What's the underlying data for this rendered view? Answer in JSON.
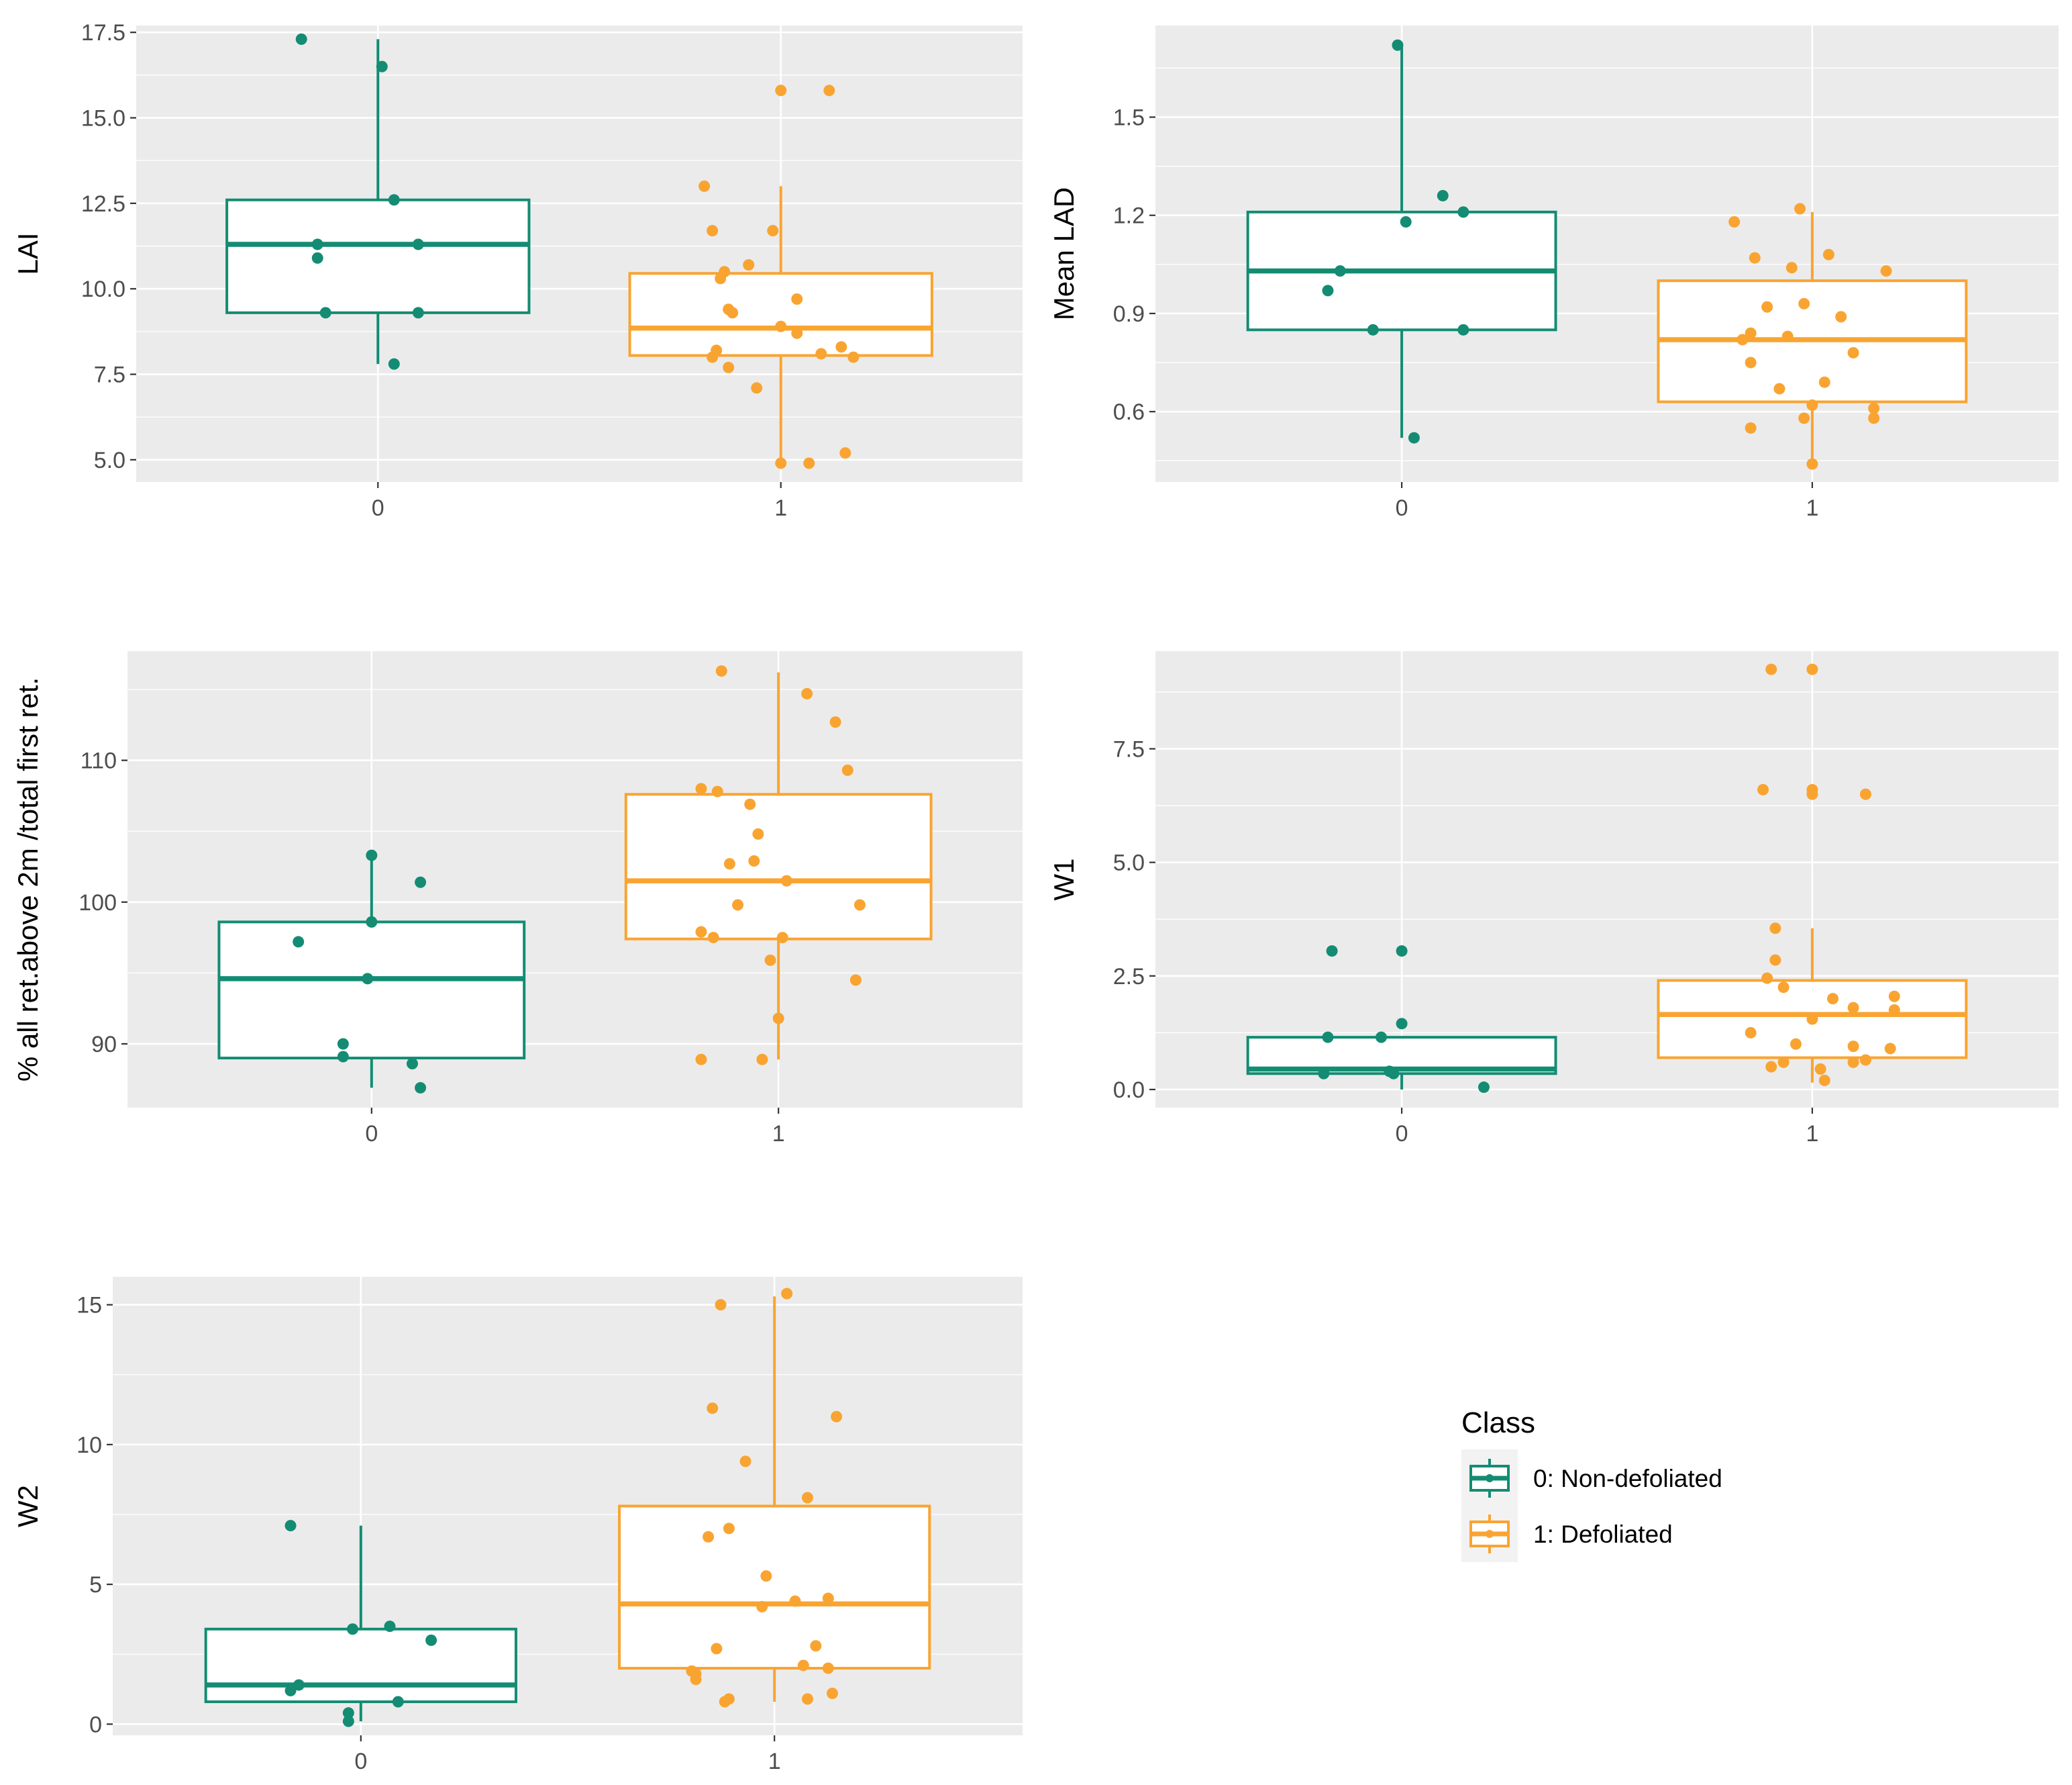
{
  "colors": {
    "class0": "#138C73",
    "class1": "#F9A431"
  },
  "legend": {
    "title": "Class",
    "items": [
      {
        "label": "0: Non-defoliated",
        "color": "#138C73"
      },
      {
        "label": "1: Defoliated",
        "color": "#F9A431"
      }
    ]
  },
  "chart_data": [
    {
      "type": "box",
      "ylabel": "LAI",
      "categories": [
        "0",
        "1"
      ],
      "ylim": [
        4.35,
        17.7
      ],
      "yticks": [
        5.0,
        7.5,
        10.0,
        12.5,
        15.0,
        17.5
      ],
      "ytick_labels": [
        "5.0",
        "7.5",
        "10.0",
        "12.5",
        "15.0",
        "17.5"
      ],
      "boxes": [
        {
          "category": "0",
          "q1": 9.3,
          "median": 11.3,
          "q3": 12.6,
          "whisker_low": 7.8,
          "whisker_high": 17.3,
          "points": [
            [
              -0.19,
              17.3
            ],
            [
              0.01,
              16.5
            ],
            [
              0.04,
              12.6
            ],
            [
              -0.15,
              11.3
            ],
            [
              0.1,
              11.3
            ],
            [
              -0.15,
              10.9
            ],
            [
              -0.13,
              9.3
            ],
            [
              0.1,
              9.3
            ],
            [
              0.04,
              7.8
            ]
          ]
        },
        {
          "category": "1",
          "q1": 8.05,
          "median": 8.85,
          "q3": 10.45,
          "whisker_low": 4.9,
          "whisker_high": 13.0,
          "points": [
            [
              0.0,
              15.8
            ],
            [
              0.12,
              15.8
            ],
            [
              -0.19,
              13.0
            ],
            [
              -0.17,
              11.7
            ],
            [
              -0.02,
              11.7
            ],
            [
              -0.14,
              10.5
            ],
            [
              -0.08,
              10.7
            ],
            [
              -0.15,
              10.3
            ],
            [
              -0.13,
              9.4
            ],
            [
              -0.12,
              9.3
            ],
            [
              0.04,
              9.7
            ],
            [
              0.0,
              8.9
            ],
            [
              0.04,
              8.7
            ],
            [
              -0.16,
              8.2
            ],
            [
              -0.17,
              8.0
            ],
            [
              0.1,
              8.1
            ],
            [
              0.15,
              8.3
            ],
            [
              0.18,
              8.0
            ],
            [
              -0.13,
              7.7
            ],
            [
              -0.06,
              7.1
            ],
            [
              0.0,
              4.9
            ],
            [
              0.07,
              4.9
            ],
            [
              0.16,
              5.2
            ]
          ]
        }
      ]
    },
    {
      "type": "box",
      "ylabel": "Mean LAD",
      "categories": [
        "0",
        "1"
      ],
      "ylim": [
        0.385,
        1.78
      ],
      "yticks": [
        0.6,
        0.9,
        1.2,
        1.5
      ],
      "ytick_labels": [
        "0.6",
        "0.9",
        "1.2",
        "1.5"
      ],
      "boxes": [
        {
          "category": "0",
          "q1": 0.85,
          "median": 1.03,
          "q3": 1.21,
          "whisker_low": 0.52,
          "whisker_high": 1.72,
          "points": [
            [
              -0.01,
              1.72
            ],
            [
              0.1,
              1.26
            ],
            [
              0.15,
              1.21
            ],
            [
              0.01,
              1.18
            ],
            [
              -0.15,
              1.03
            ],
            [
              -0.18,
              0.97
            ],
            [
              -0.07,
              0.85
            ],
            [
              0.15,
              0.85
            ],
            [
              0.03,
              0.52
            ]
          ]
        },
        {
          "category": "1",
          "q1": 0.63,
          "median": 0.82,
          "q3": 1.0,
          "whisker_low": 0.44,
          "whisker_high": 1.21,
          "points": [
            [
              -0.03,
              1.22
            ],
            [
              -0.19,
              1.18
            ],
            [
              -0.14,
              1.07
            ],
            [
              0.04,
              1.08
            ],
            [
              -0.05,
              1.04
            ],
            [
              0.18,
              1.03
            ],
            [
              -0.11,
              0.92
            ],
            [
              -0.02,
              0.93
            ],
            [
              0.07,
              0.89
            ],
            [
              -0.15,
              0.84
            ],
            [
              -0.06,
              0.83
            ],
            [
              -0.17,
              0.82
            ],
            [
              0.1,
              0.78
            ],
            [
              -0.15,
              0.75
            ],
            [
              0.03,
              0.69
            ],
            [
              -0.08,
              0.67
            ],
            [
              0.15,
              0.61
            ],
            [
              -0.02,
              0.58
            ],
            [
              0.15,
              0.58
            ],
            [
              0.0,
              0.62
            ],
            [
              -0.15,
              0.55
            ],
            [
              0.0,
              0.44
            ]
          ]
        }
      ]
    },
    {
      "type": "box",
      "ylabel": "% all ret.above 2m /total first ret.",
      "categories": [
        "0",
        "1"
      ],
      "ylim": [
        85.5,
        117.7
      ],
      "yticks": [
        90,
        100,
        110
      ],
      "ytick_labels": [
        "90",
        "100",
        "110"
      ],
      "boxes": [
        {
          "category": "0",
          "q1": 89.0,
          "median": 94.6,
          "q3": 98.6,
          "whisker_low": 86.9,
          "whisker_high": 103.3,
          "points": [
            [
              0.0,
              103.3
            ],
            [
              0.12,
              101.4
            ],
            [
              0.0,
              98.6
            ],
            [
              -0.18,
              97.2
            ],
            [
              -0.01,
              94.6
            ],
            [
              -0.07,
              90.0
            ],
            [
              -0.07,
              89.1
            ],
            [
              0.1,
              88.6
            ],
            [
              0.12,
              86.9
            ]
          ]
        },
        {
          "category": "1",
          "q1": 97.4,
          "median": 101.5,
          "q3": 107.6,
          "whisker_low": 88.9,
          "whisker_high": 116.2,
          "points": [
            [
              -0.14,
              116.3
            ],
            [
              0.07,
              114.7
            ],
            [
              0.14,
              112.7
            ],
            [
              0.17,
              109.3
            ],
            [
              -0.19,
              108.0
            ],
            [
              -0.15,
              107.8
            ],
            [
              -0.07,
              106.9
            ],
            [
              -0.05,
              104.8
            ],
            [
              -0.12,
              102.7
            ],
            [
              -0.06,
              102.9
            ],
            [
              0.02,
              101.5
            ],
            [
              -0.1,
              99.8
            ],
            [
              0.2,
              99.8
            ],
            [
              -0.19,
              97.9
            ],
            [
              -0.16,
              97.5
            ],
            [
              0.01,
              97.5
            ],
            [
              -0.02,
              95.9
            ],
            [
              0.19,
              94.5
            ],
            [
              0.0,
              91.8
            ],
            [
              -0.19,
              88.9
            ],
            [
              -0.04,
              88.9
            ]
          ]
        }
      ]
    },
    {
      "type": "box",
      "ylabel": "W1",
      "categories": [
        "0",
        "1"
      ],
      "ylim": [
        -0.4,
        9.65
      ],
      "yticks": [
        0.0,
        2.5,
        5.0,
        7.5
      ],
      "ytick_labels": [
        "0.0",
        "2.5",
        "5.0",
        "7.5"
      ],
      "boxes": [
        {
          "category": "0",
          "q1": 0.35,
          "median": 0.45,
          "q3": 1.15,
          "whisker_low": 0.0,
          "whisker_high": 1.15,
          "points": [
            [
              -0.17,
              3.05
            ],
            [
              0.0,
              3.05
            ],
            [
              0.0,
              1.45
            ],
            [
              -0.18,
              1.15
            ],
            [
              -0.05,
              1.15
            ],
            [
              -0.19,
              0.35
            ],
            [
              -0.03,
              0.4
            ],
            [
              -0.02,
              0.35
            ],
            [
              0.2,
              0.05
            ]
          ]
        },
        {
          "category": "1",
          "q1": 0.7,
          "median": 1.65,
          "q3": 2.4,
          "whisker_low": 0.15,
          "whisker_high": 3.55,
          "points": [
            [
              -0.1,
              9.25
            ],
            [
              0.0,
              9.25
            ],
            [
              -0.12,
              6.6
            ],
            [
              0.0,
              6.6
            ],
            [
              0.0,
              6.5
            ],
            [
              0.13,
              6.5
            ],
            [
              -0.09,
              3.55
            ],
            [
              -0.09,
              2.85
            ],
            [
              -0.11,
              2.45
            ],
            [
              -0.07,
              2.25
            ],
            [
              0.05,
              2.0
            ],
            [
              0.2,
              2.05
            ],
            [
              0.1,
              1.8
            ],
            [
              0.2,
              1.75
            ],
            [
              0.0,
              1.55
            ],
            [
              -0.15,
              1.25
            ],
            [
              -0.04,
              1.0
            ],
            [
              0.19,
              0.9
            ],
            [
              0.1,
              0.95
            ],
            [
              -0.1,
              0.5
            ],
            [
              -0.07,
              0.6
            ],
            [
              0.02,
              0.45
            ],
            [
              0.1,
              0.6
            ],
            [
              0.13,
              0.65
            ],
            [
              0.03,
              0.2
            ]
          ]
        }
      ]
    },
    {
      "type": "box",
      "ylabel": "W2",
      "categories": [
        "0",
        "1"
      ],
      "ylim": [
        -0.4,
        16.0
      ],
      "yticks": [
        0,
        5,
        10,
        15
      ],
      "ytick_labels": [
        "0",
        "5",
        "10",
        "15"
      ],
      "boxes": [
        {
          "category": "0",
          "q1": 0.8,
          "median": 1.4,
          "q3": 3.4,
          "whisker_low": 0.1,
          "whisker_high": 7.1,
          "points": [
            [
              -0.17,
              7.1
            ],
            [
              0.07,
              3.5
            ],
            [
              -0.02,
              3.4
            ],
            [
              0.17,
              3.0
            ],
            [
              -0.15,
              1.4
            ],
            [
              -0.17,
              1.2
            ],
            [
              0.09,
              0.8
            ],
            [
              -0.03,
              0.4
            ],
            [
              -0.03,
              0.1
            ]
          ]
        },
        {
          "category": "1",
          "q1": 2.0,
          "median": 4.3,
          "q3": 7.8,
          "whisker_low": 0.8,
          "whisker_high": 15.3,
          "points": [
            [
              0.03,
              15.4
            ],
            [
              -0.13,
              15.0
            ],
            [
              -0.15,
              11.3
            ],
            [
              0.15,
              11.0
            ],
            [
              -0.07,
              9.4
            ],
            [
              0.08,
              8.1
            ],
            [
              -0.11,
              7.0
            ],
            [
              -0.16,
              6.7
            ],
            [
              -0.02,
              5.3
            ],
            [
              -0.03,
              4.2
            ],
            [
              0.05,
              4.4
            ],
            [
              0.13,
              4.5
            ],
            [
              -0.14,
              2.7
            ],
            [
              0.1,
              2.8
            ],
            [
              -0.2,
              1.9
            ],
            [
              -0.19,
              1.8
            ],
            [
              -0.19,
              1.6
            ],
            [
              0.07,
              2.1
            ],
            [
              0.13,
              2.0
            ],
            [
              0.14,
              1.1
            ],
            [
              -0.11,
              0.9
            ],
            [
              -0.12,
              0.8
            ],
            [
              0.08,
              0.9
            ]
          ]
        }
      ]
    }
  ]
}
